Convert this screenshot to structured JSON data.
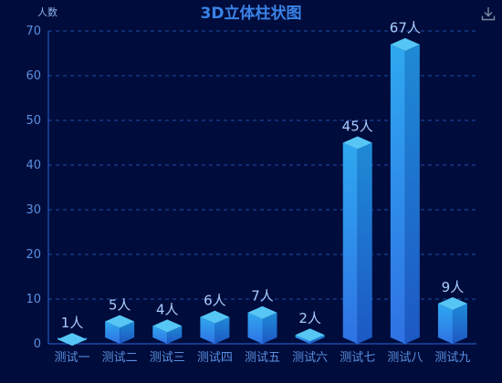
{
  "chart_data": {
    "type": "bar",
    "title": "3D立体柱状图",
    "ylabel": "人数",
    "xlabel": "",
    "categories": [
      "测试一",
      "测试二",
      "测试三",
      "测试四",
      "测试五",
      "测试六",
      "测试七",
      "测试八",
      "测试九"
    ],
    "values": [
      1,
      5,
      4,
      6,
      7,
      2,
      45,
      67,
      9
    ],
    "data_labels": [
      "1人",
      "5人",
      "4人",
      "6人",
      "7人",
      "2人",
      "45人",
      "67人",
      "9人"
    ],
    "ylim": [
      0,
      70
    ],
    "yticks": [
      "0",
      "10",
      "20",
      "30",
      "40",
      "50",
      "60",
      "70"
    ],
    "grid": true,
    "legend": "none"
  },
  "colors": {
    "background": "#000c3b",
    "bar_front_top": "#2fa8f0",
    "bar_front_bottom": "#2f72e4",
    "bar_side_top": "#1f8ad6",
    "bar_side_bottom": "#1d58c4",
    "bar_top": "#56c6f5",
    "grid": "#1f4ea8",
    "axis": "#2a64d8"
  },
  "toolbar": {
    "download_icon": "download-icon"
  }
}
